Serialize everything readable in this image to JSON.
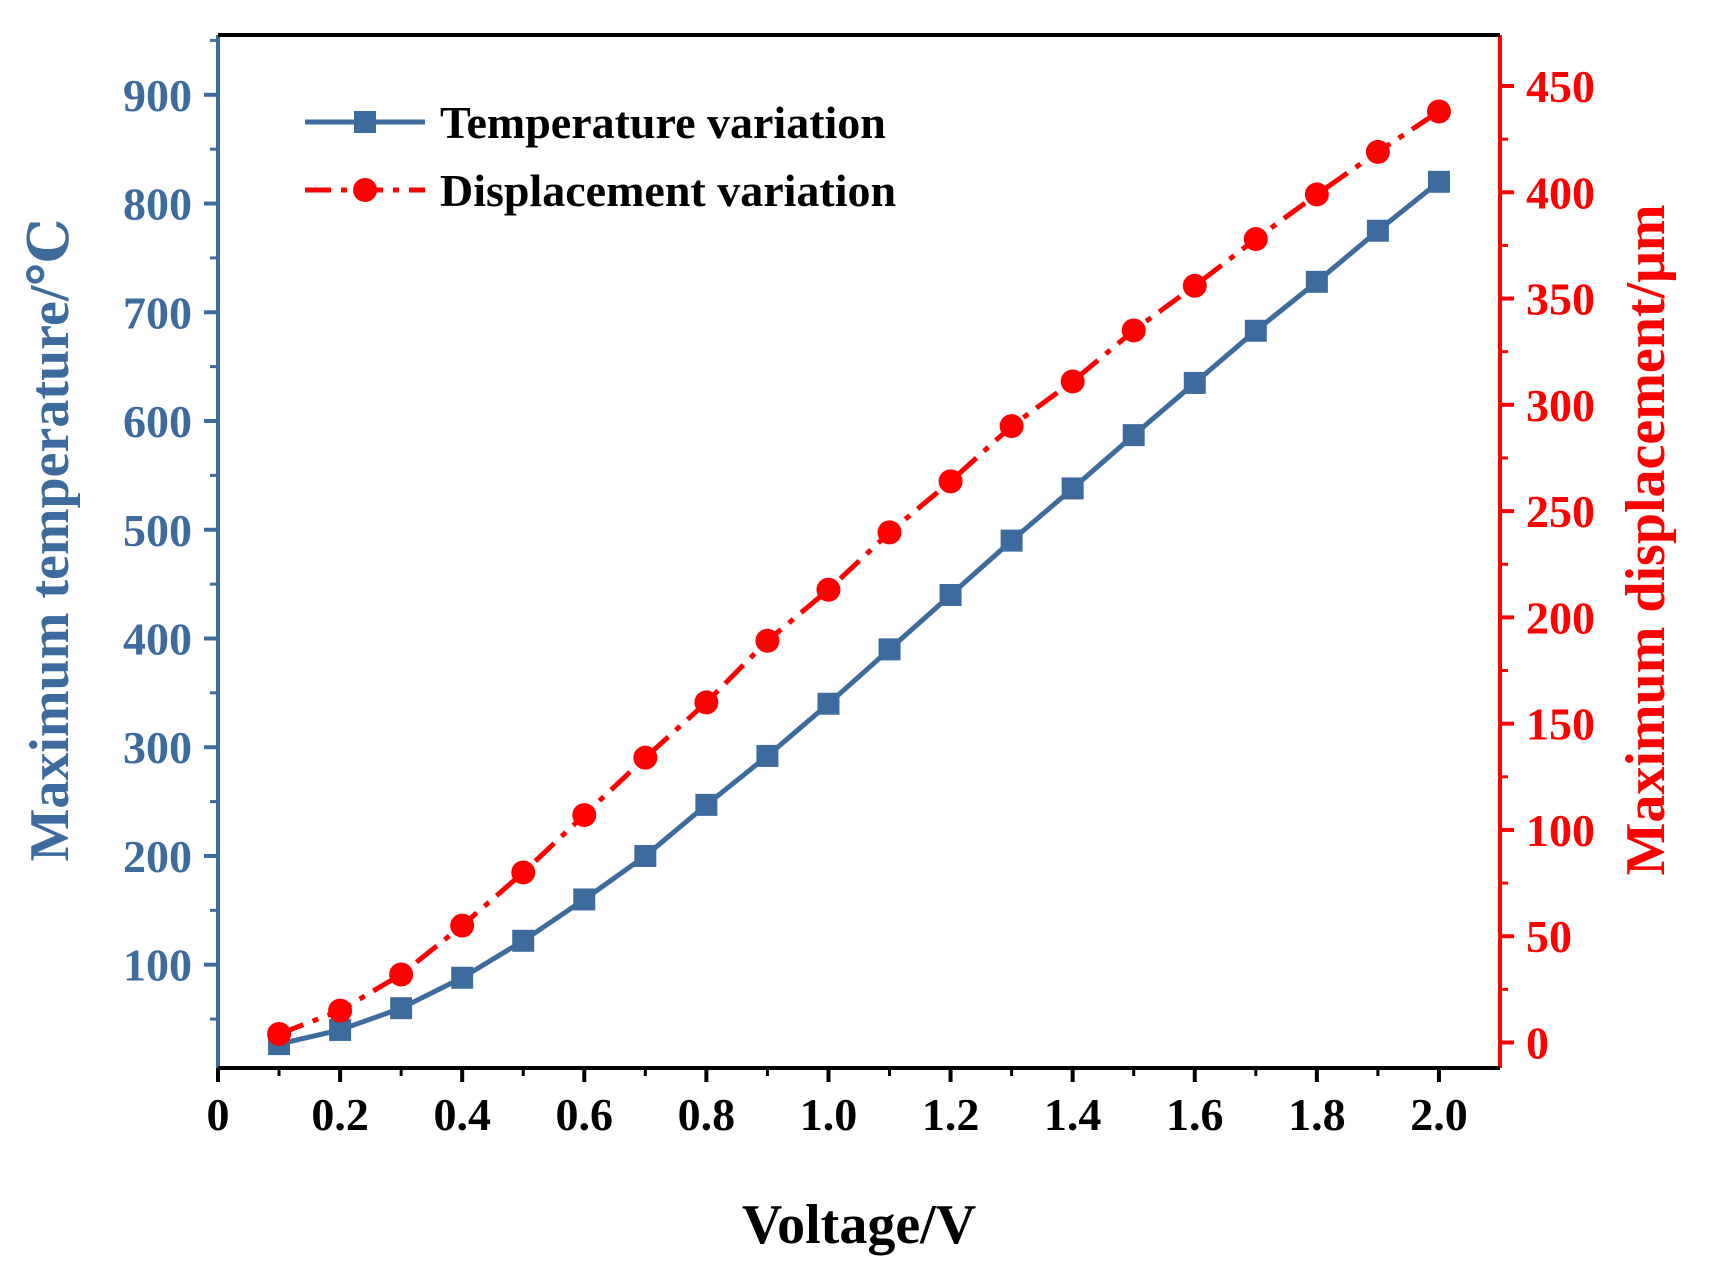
{
  "chart_data": {
    "type": "line",
    "xlabel": "Voltage/V",
    "ylabel_left": "Maximum temperature/℃",
    "ylabel_right": "Maximum displacement/μm",
    "xlim": [
      0,
      2.1
    ],
    "ylim_left": [
      5,
      955
    ],
    "ylim_right": [
      -12,
      474
    ],
    "x_ticks": [
      0,
      0.2,
      0.4,
      0.6,
      0.8,
      1.0,
      1.2,
      1.4,
      1.6,
      1.8,
      2.0
    ],
    "x_tick_labels": [
      "0",
      "0.2",
      "0.4",
      "0.6",
      "0.8",
      "1.0",
      "1.2",
      "1.4",
      "1.6",
      "1.8",
      "2.0"
    ],
    "y_left_ticks": [
      100,
      200,
      300,
      400,
      500,
      600,
      700,
      800,
      900
    ],
    "y_left_tick_labels": [
      "100",
      "200",
      "300",
      "400",
      "500",
      "600",
      "700",
      "800",
      "900"
    ],
    "y_right_ticks": [
      0,
      50,
      100,
      150,
      200,
      250,
      300,
      350,
      400,
      450
    ],
    "y_right_tick_labels": [
      "0",
      "50",
      "100",
      "150",
      "200",
      "250",
      "300",
      "350",
      "400",
      "450"
    ],
    "x": [
      0.1,
      0.2,
      0.3,
      0.4,
      0.5,
      0.6,
      0.7,
      0.8,
      0.9,
      1.0,
      1.1,
      1.2,
      1.3,
      1.4,
      1.5,
      1.6,
      1.7,
      1.8,
      1.9,
      2.0
    ],
    "series": [
      {
        "name": "Temperature variation",
        "axis": "left",
        "color": "#3d6b9e",
        "marker": "square",
        "line_style": "solid",
        "values": [
          27,
          40,
          60,
          88,
          122,
          160,
          200,
          247,
          292,
          340,
          390,
          440,
          490,
          538,
          587,
          635,
          683,
          728,
          775,
          820
        ]
      },
      {
        "name": "Displacement variation",
        "axis": "right",
        "color": "#ff0000",
        "marker": "circle",
        "line_style": "dash-dot",
        "values": [
          4,
          15,
          32,
          55,
          80,
          107,
          134,
          160,
          189,
          213,
          240,
          264,
          290,
          311,
          335,
          356,
          378,
          399,
          419,
          438
        ]
      }
    ],
    "legend_position": "top-left",
    "grid": false
  }
}
